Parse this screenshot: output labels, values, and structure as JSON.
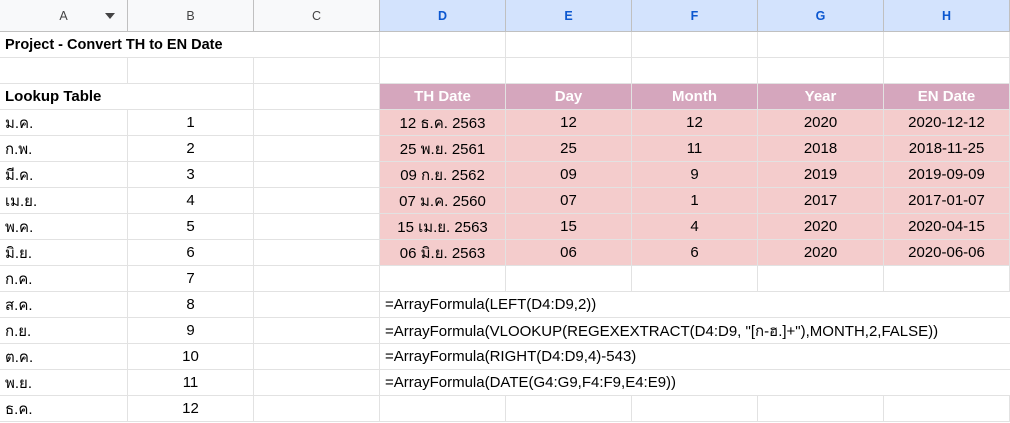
{
  "columns": [
    "A",
    "B",
    "C",
    "D",
    "E",
    "F",
    "G",
    "H"
  ],
  "title": "Project - Convert TH to EN Date",
  "lookup": {
    "heading": "Lookup Table",
    "rows": [
      {
        "month": "ม.ค.",
        "num": "1"
      },
      {
        "month": "ก.พ.",
        "num": "2"
      },
      {
        "month": "มี.ค.",
        "num": "3"
      },
      {
        "month": "เม.ย.",
        "num": "4"
      },
      {
        "month": "พ.ค.",
        "num": "5"
      },
      {
        "month": "มิ.ย.",
        "num": "6"
      },
      {
        "month": "ก.ค.",
        "num": "7"
      },
      {
        "month": "ส.ค.",
        "num": "8"
      },
      {
        "month": "ก.ย.",
        "num": "9"
      },
      {
        "month": "ต.ค.",
        "num": "10"
      },
      {
        "month": "พ.ย.",
        "num": "11"
      },
      {
        "month": "ธ.ค.",
        "num": "12"
      }
    ]
  },
  "table": {
    "headers": [
      "TH Date",
      "Day",
      "Month",
      "Year",
      "EN Date"
    ],
    "rows": [
      [
        "12 ธ.ค. 2563",
        "12",
        "12",
        "2020",
        "2020-12-12"
      ],
      [
        "25 พ.ย. 2561",
        "25",
        "11",
        "2018",
        "2018-11-25"
      ],
      [
        "09 ก.ย. 2562",
        "09",
        "9",
        "2019",
        "2019-09-09"
      ],
      [
        "07 ม.ค. 2560",
        "07",
        "1",
        "2017",
        "2017-01-07"
      ],
      [
        "15 เม.ย. 2563",
        "15",
        "4",
        "2020",
        "2020-04-15"
      ],
      [
        "06 มิ.ย. 2563",
        "06",
        "6",
        "2020",
        "2020-06-06"
      ]
    ]
  },
  "formulas": [
    "=ArrayFormula(LEFT(D4:D9,2))",
    "=ArrayFormula(VLOOKUP(REGEXEXTRACT(D4:D9, \"[ก-ฮ.]+\"),MONTH,2,FALSE))",
    "=ArrayFormula(RIGHT(D4:D9,4)-543)",
    "=ArrayFormula(DATE(G4:G9,F4:F9,E4:E9))"
  ],
  "colors": {
    "header_fill": "#d5a6bd",
    "data_fill": "#f4cccc",
    "selected_col": "#d3e3fd"
  }
}
